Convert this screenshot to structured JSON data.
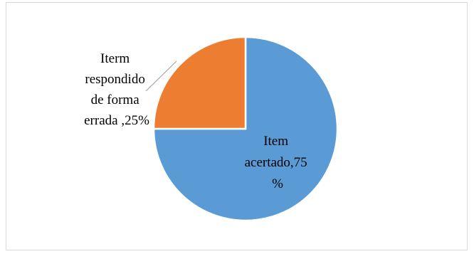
{
  "chart_data": {
    "type": "pie",
    "title": "",
    "slices": [
      {
        "label_lines": [
          "Item",
          "acertado,75",
          "%"
        ],
        "value": 75,
        "color": "#5b9bd5"
      },
      {
        "label_lines": [
          "Iterm",
          "respondido",
          "de forma",
          "errada ,25%"
        ],
        "value": 25,
        "color": "#ed7d31"
      }
    ],
    "legend": "none",
    "start_angle": "12 o'clock, slices drawn clockwise"
  },
  "colors": {
    "border": "#d9d9d9",
    "leader_line": "#a6a6a6"
  }
}
